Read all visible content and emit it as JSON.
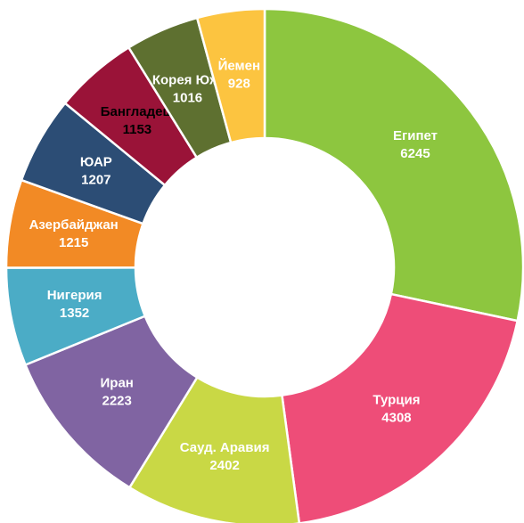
{
  "chart_data": {
    "type": "donut",
    "categories": [
      "Египет",
      "Турция",
      "Сауд. Аравия",
      "Иран",
      "Нигерия",
      "Азербайджан",
      "ЮАР",
      "Бангладеш",
      "Корея Юж.",
      "Йемен"
    ],
    "values": [
      6245,
      4308,
      2402,
      2223,
      1352,
      1215,
      1207,
      1153,
      1016,
      928
    ],
    "colors": [
      "#8dc63f",
      "#ee4d78",
      "#c9d845",
      "#8064a2",
      "#4bacc6",
      "#f28a25",
      "#2c4d75",
      "#9a1338",
      "#5e7030",
      "#fcc440"
    ],
    "label_colors": [
      "#ffffff",
      "#ffffff",
      "#ffffff",
      "#ffffff",
      "#ffffff",
      "#ffffff",
      "#ffffff",
      "#000000",
      "#ffffff",
      "#ffffff"
    ]
  }
}
